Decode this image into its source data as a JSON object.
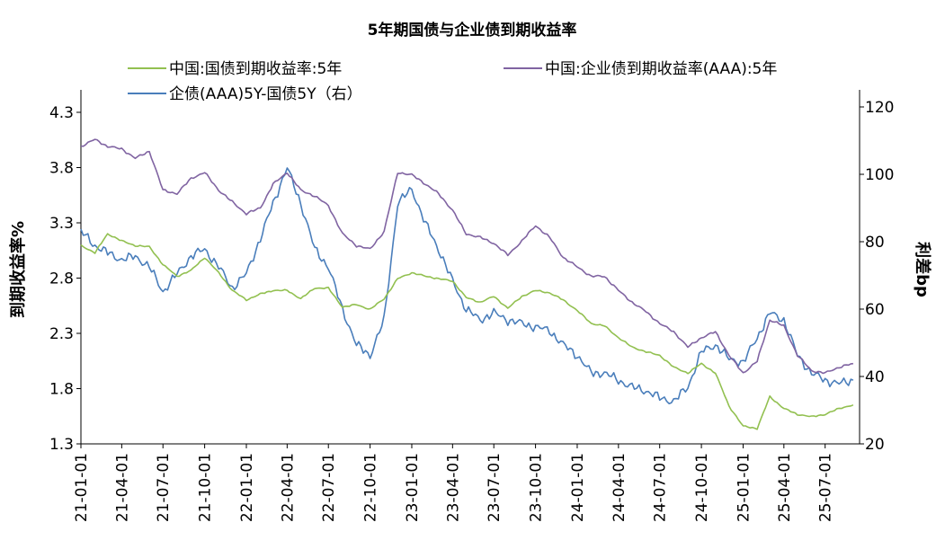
{
  "chart_data": {
    "type": "line",
    "title": "5年期国债与企业债到期收益率",
    "ylabel_left": "到期收益率%",
    "ylabel_right": "利差bp",
    "ylim_left": [
      1.3,
      4.3
    ],
    "yticks_left": [
      "1.3",
      "1.8",
      "2.3",
      "2.8",
      "3.3",
      "3.8",
      "4.3"
    ],
    "ylim_right": [
      20,
      120
    ],
    "yticks_right": [
      "20",
      "40",
      "60",
      "80",
      "100",
      "120"
    ],
    "xlim": [
      "2021-01-01",
      "2025-09-15"
    ],
    "xticks": [
      "21-01-01",
      "21-04-01",
      "21-07-01",
      "21-10-01",
      "22-01-01",
      "22-04-01",
      "22-07-01",
      "22-10-01",
      "23-01-01",
      "23-04-01",
      "23-07-01",
      "23-10-01",
      "24-01-01",
      "24-04-01",
      "24-07-01",
      "24-10-01",
      "25-01-01",
      "25-04-01",
      "25-07-01"
    ],
    "grid": false,
    "legend_position": "top",
    "series": [
      {
        "name": "中国:国债到期收益率:5年",
        "axis": "left",
        "color": "#92c050",
        "x": [
          "2021-01-01",
          "2021-02-01",
          "2021-03-01",
          "2021-04-01",
          "2021-05-01",
          "2021-06-01",
          "2021-07-01",
          "2021-08-01",
          "2021-09-01",
          "2021-10-01",
          "2021-11-01",
          "2021-12-01",
          "2022-01-01",
          "2022-02-01",
          "2022-03-01",
          "2022-04-01",
          "2022-05-01",
          "2022-06-01",
          "2022-07-01",
          "2022-08-01",
          "2022-09-01",
          "2022-10-01",
          "2022-11-01",
          "2022-12-01",
          "2023-01-01",
          "2023-02-01",
          "2023-03-01",
          "2023-04-01",
          "2023-05-01",
          "2023-06-01",
          "2023-07-01",
          "2023-08-01",
          "2023-09-01",
          "2023-10-01",
          "2023-11-01",
          "2023-12-01",
          "2024-01-01",
          "2024-02-01",
          "2024-03-01",
          "2024-04-01",
          "2024-05-01",
          "2024-06-01",
          "2024-07-01",
          "2024-08-01",
          "2024-09-01",
          "2024-10-01",
          "2024-11-01",
          "2024-12-01",
          "2025-01-01",
          "2025-02-01",
          "2025-03-01",
          "2025-04-01",
          "2025-05-01",
          "2025-06-01",
          "2025-07-01",
          "2025-08-01",
          "2025-09-01"
        ],
        "values": [
          2.98,
          2.92,
          3.08,
          3.02,
          2.98,
          2.97,
          2.82,
          2.72,
          2.77,
          2.88,
          2.75,
          2.6,
          2.52,
          2.57,
          2.6,
          2.6,
          2.53,
          2.62,
          2.62,
          2.46,
          2.48,
          2.44,
          2.53,
          2.7,
          2.75,
          2.72,
          2.7,
          2.68,
          2.54,
          2.5,
          2.55,
          2.45,
          2.55,
          2.6,
          2.58,
          2.52,
          2.43,
          2.32,
          2.3,
          2.2,
          2.12,
          2.08,
          2.05,
          1.95,
          1.9,
          1.98,
          1.9,
          1.62,
          1.45,
          1.43,
          1.7,
          1.6,
          1.55,
          1.53,
          1.55,
          1.6,
          1.63
        ]
      },
      {
        "name": "中国:企业债到期收益率(AAA):5年",
        "axis": "left",
        "color": "#8064a2",
        "x": [
          "2021-01-01",
          "2021-02-01",
          "2021-03-01",
          "2021-04-01",
          "2021-05-01",
          "2021-06-01",
          "2021-07-01",
          "2021-08-01",
          "2021-09-01",
          "2021-10-01",
          "2021-11-01",
          "2021-12-01",
          "2022-01-01",
          "2022-02-01",
          "2022-03-01",
          "2022-04-01",
          "2022-05-01",
          "2022-06-01",
          "2022-07-01",
          "2022-08-01",
          "2022-09-01",
          "2022-10-01",
          "2022-11-01",
          "2022-12-01",
          "2023-01-01",
          "2023-02-01",
          "2023-03-01",
          "2023-04-01",
          "2023-05-01",
          "2023-06-01",
          "2023-07-01",
          "2023-08-01",
          "2023-09-01",
          "2023-10-01",
          "2023-11-01",
          "2023-12-01",
          "2024-01-01",
          "2024-02-01",
          "2024-03-01",
          "2024-04-01",
          "2024-05-01",
          "2024-06-01",
          "2024-07-01",
          "2024-08-01",
          "2024-09-01",
          "2024-10-01",
          "2024-11-01",
          "2024-12-01",
          "2025-01-01",
          "2025-02-01",
          "2025-03-01",
          "2025-04-01",
          "2025-05-01",
          "2025-06-01",
          "2025-07-01",
          "2025-08-01",
          "2025-09-01"
        ],
        "values": [
          3.82,
          3.88,
          3.82,
          3.8,
          3.72,
          3.78,
          3.45,
          3.42,
          3.55,
          3.6,
          3.45,
          3.35,
          3.25,
          3.3,
          3.5,
          3.6,
          3.45,
          3.4,
          3.32,
          3.08,
          2.98,
          2.95,
          3.1,
          3.6,
          3.58,
          3.5,
          3.42,
          3.28,
          3.08,
          3.05,
          3.0,
          2.9,
          3.02,
          3.15,
          3.05,
          2.88,
          2.8,
          2.72,
          2.72,
          2.6,
          2.5,
          2.42,
          2.32,
          2.25,
          2.12,
          2.2,
          2.25,
          2.05,
          1.9,
          2.0,
          2.35,
          2.3,
          2.05,
          1.92,
          1.9,
          1.95,
          1.98
        ]
      },
      {
        "name": "企债(AAA)5Y-国债5Y（右）",
        "axis": "right",
        "color": "#4a7ebb",
        "x": [
          "2021-01-01",
          "2021-02-01",
          "2021-03-01",
          "2021-04-01",
          "2021-05-01",
          "2021-06-01",
          "2021-07-01",
          "2021-08-01",
          "2021-09-01",
          "2021-10-01",
          "2021-11-01",
          "2021-12-01",
          "2022-01-01",
          "2022-02-01",
          "2022-03-01",
          "2022-04-01",
          "2022-05-01",
          "2022-06-01",
          "2022-07-01",
          "2022-08-01",
          "2022-09-01",
          "2022-10-01",
          "2022-11-01",
          "2022-12-01",
          "2023-01-01",
          "2023-02-01",
          "2023-03-01",
          "2023-04-01",
          "2023-05-01",
          "2023-06-01",
          "2023-07-01",
          "2023-08-01",
          "2023-09-01",
          "2023-10-01",
          "2023-11-01",
          "2023-12-01",
          "2024-01-01",
          "2024-02-01",
          "2024-03-01",
          "2024-04-01",
          "2024-05-01",
          "2024-06-01",
          "2024-07-01",
          "2024-08-01",
          "2024-09-01",
          "2024-10-01",
          "2024-11-01",
          "2024-12-01",
          "2025-01-01",
          "2025-02-01",
          "2025-03-01",
          "2025-04-01",
          "2025-05-01",
          "2025-06-01",
          "2025-07-01",
          "2025-08-01",
          "2025-09-01"
        ],
        "values": [
          80,
          76,
          74,
          72,
          73,
          70,
          63,
          68,
          73,
          75,
          70,
          64,
          68,
          78,
          88,
          98,
          88,
          75,
          70,
          58,
          48,
          45,
          55,
          88,
          92,
          82,
          75,
          66,
          58,
          55,
          57,
          55,
          54,
          53,
          52,
          48,
          45,
          40,
          40,
          38,
          36,
          35,
          33,
          32,
          36,
          46,
          48,
          44,
          43,
          50,
          57,
          55,
          45,
          40,
          38,
          37,
          38
        ]
      }
    ]
  }
}
